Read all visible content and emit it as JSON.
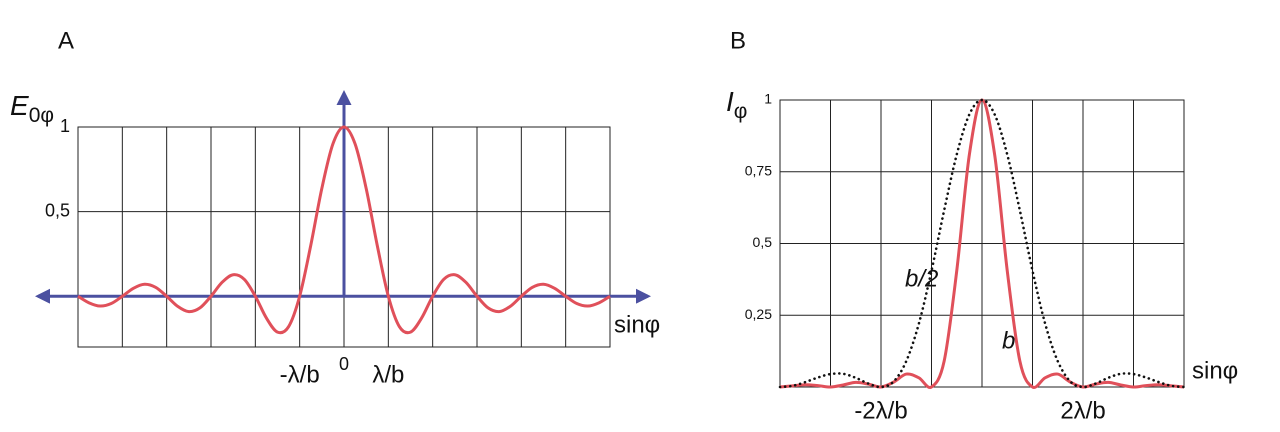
{
  "chart_data": [
    {
      "type": "line",
      "title": "A",
      "y_label": "E",
      "y_label_sub": "0φ",
      "x_label": "sinφ",
      "x": [
        -6,
        -5.75,
        -5.5,
        -5.25,
        -5,
        -4.75,
        -4.5,
        -4.25,
        -4,
        -3.75,
        -3.5,
        -3.25,
        -3,
        -2.75,
        -2.5,
        -2.25,
        -2,
        -1.75,
        -1.5,
        -1.25,
        -1,
        -0.75,
        -0.5,
        -0.25,
        0,
        0.25,
        0.5,
        0.75,
        1,
        1.25,
        1.5,
        1.75,
        2,
        2.25,
        2.5,
        2.75,
        3,
        3.25,
        3.5,
        3.75,
        4,
        4.25,
        4.5,
        4.75,
        5,
        5.25,
        5.5,
        5.75,
        6
      ],
      "series": [
        {
          "color": "#e0505a",
          "style": "solid",
          "values": [
            0,
            -0.039,
            -0.058,
            -0.043,
            0,
            0.047,
            0.071,
            0.053,
            0,
            -0.06,
            -0.091,
            -0.069,
            0,
            0.082,
            0.127,
            0.1,
            0,
            -0.129,
            -0.212,
            -0.18,
            0,
            0.3,
            0.637,
            0.9,
            1,
            0.9,
            0.637,
            0.3,
            0,
            -0.18,
            -0.212,
            -0.129,
            0,
            0.1,
            0.127,
            0.082,
            0,
            -0.069,
            -0.091,
            -0.06,
            0,
            0.053,
            0.071,
            0.047,
            0,
            -0.043,
            -0.058,
            -0.039,
            0
          ]
        }
      ],
      "xlim": [
        -6,
        6
      ],
      "xgrid": [
        -6,
        -5,
        -4,
        -3,
        -2,
        -1,
        0,
        1,
        2,
        3,
        4,
        5,
        6
      ],
      "xticks": [
        {
          "value": -1,
          "label": "-λ/b"
        },
        0,
        {
          "value": 1,
          "label": "λ/b"
        }
      ],
      "ylim": [
        -0.3,
        1
      ],
      "yticks": [
        {
          "value": 0.5,
          "label": "0,5"
        },
        1
      ],
      "axis_arrows": true,
      "axis_color": "#4b50a0"
    },
    {
      "type": "line",
      "title": "B",
      "y_label": "I",
      "y_label_sub": "φ",
      "x_label": "sinφ",
      "x": [
        -4,
        -3.75,
        -3.5,
        -3.25,
        -3,
        -2.75,
        -2.5,
        -2.25,
        -2,
        -1.75,
        -1.5,
        -1.25,
        -1,
        -0.75,
        -0.5,
        -0.25,
        0,
        0.25,
        0.5,
        0.75,
        1,
        1.25,
        1.5,
        1.75,
        2,
        2.25,
        2.5,
        2.75,
        3,
        3.25,
        3.5,
        3.75,
        4
      ],
      "series": [
        {
          "name": "b",
          "color": "#e0505a",
          "style": "solid",
          "values": [
            0,
            0.004,
            0.008,
            0.005,
            0,
            0.007,
            0.016,
            0.01,
            0,
            0.017,
            0.045,
            0.032,
            0,
            0.09,
            0.405,
            0.81,
            1,
            0.81,
            0.405,
            0.09,
            0,
            0.032,
            0.045,
            0.017,
            0,
            0.01,
            0.016,
            0.007,
            0,
            0.005,
            0.008,
            0.004,
            0
          ]
        },
        {
          "name": "b/2",
          "color": "#111111",
          "style": "dotted",
          "values": [
            0,
            0.004,
            0.017,
            0.033,
            0.045,
            0.046,
            0.032,
            0.012,
            0,
            0.019,
            0.09,
            0.221,
            0.405,
            0.615,
            0.81,
            0.95,
            1,
            0.95,
            0.81,
            0.615,
            0.405,
            0.221,
            0.09,
            0.019,
            0,
            0.012,
            0.032,
            0.046,
            0.045,
            0.033,
            0.017,
            0.004,
            0
          ]
        }
      ],
      "xlim": [
        -4,
        4
      ],
      "xgrid": [
        -4,
        -3,
        -2,
        -1,
        0,
        1,
        2,
        3,
        4
      ],
      "xticks": [
        {
          "value": -2,
          "label": "-2λ/b"
        },
        {
          "value": 2,
          "label": "2λ/b"
        }
      ],
      "ylim": [
        0,
        1
      ],
      "yticks": [
        {
          "value": 0.25,
          "label": "0,25"
        },
        {
          "value": 0.5,
          "label": "0,5"
        },
        {
          "value": 0.75,
          "label": "0,75"
        },
        1
      ],
      "axis_arrows": false
    }
  ]
}
